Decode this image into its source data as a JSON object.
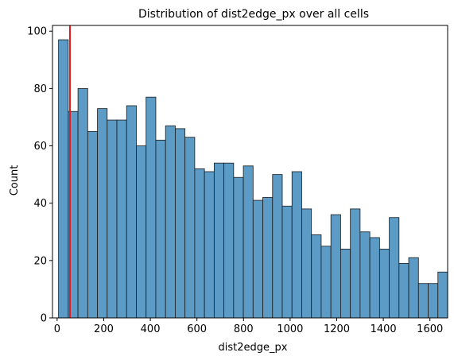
{
  "chart_data": {
    "type": "bar",
    "title": "Distribution of dist2edge_px over all cells",
    "xlabel": "dist2edge_px",
    "ylabel": "Count",
    "xlim": [
      -20,
      1676
    ],
    "ylim": [
      0,
      102
    ],
    "x_ticks": [
      0,
      200,
      400,
      600,
      800,
      1000,
      1200,
      1400,
      1600
    ],
    "y_ticks": [
      0,
      20,
      40,
      60,
      80,
      100
    ],
    "bin_start": 6,
    "bin_width": 41.75,
    "values": [
      97,
      72,
      80,
      65,
      73,
      69,
      69,
      74,
      60,
      77,
      62,
      67,
      66,
      63,
      52,
      51,
      54,
      54,
      49,
      53,
      41,
      42,
      50,
      39,
      51,
      38,
      29,
      25,
      36,
      24,
      38,
      30,
      28,
      24,
      35,
      19,
      21,
      12,
      12,
      16
    ],
    "bar_color": "#5b9bc6",
    "bar_edge_color": "#1a1a1a",
    "vline": {
      "x": 55,
      "color": "#e41a1c"
    },
    "grid": false
  }
}
